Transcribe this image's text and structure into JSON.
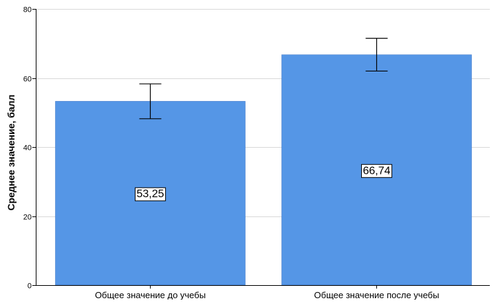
{
  "chart_data": {
    "type": "bar",
    "title": "",
    "xlabel": "",
    "ylabel": "Среднее значение, балл",
    "ylim": [
      0,
      80
    ],
    "yticks": [
      0,
      20,
      40,
      60,
      80
    ],
    "categories": [
      "Общее значение до учебы",
      "Общее значение после учебы"
    ],
    "values": [
      53.25,
      66.74
    ],
    "value_labels": [
      "53,25",
      "66,74"
    ],
    "error_bars": [
      {
        "low": 48.2,
        "high": 58.3
      },
      {
        "low": 62.0,
        "high": 71.5
      }
    ],
    "grid": true,
    "legend": "none",
    "colors": {
      "bar": "#5596E6",
      "bar_stroke": "#3a73c4",
      "grid": "#d8d8d8",
      "axis": "#000000",
      "error_bar": "#000000"
    }
  }
}
